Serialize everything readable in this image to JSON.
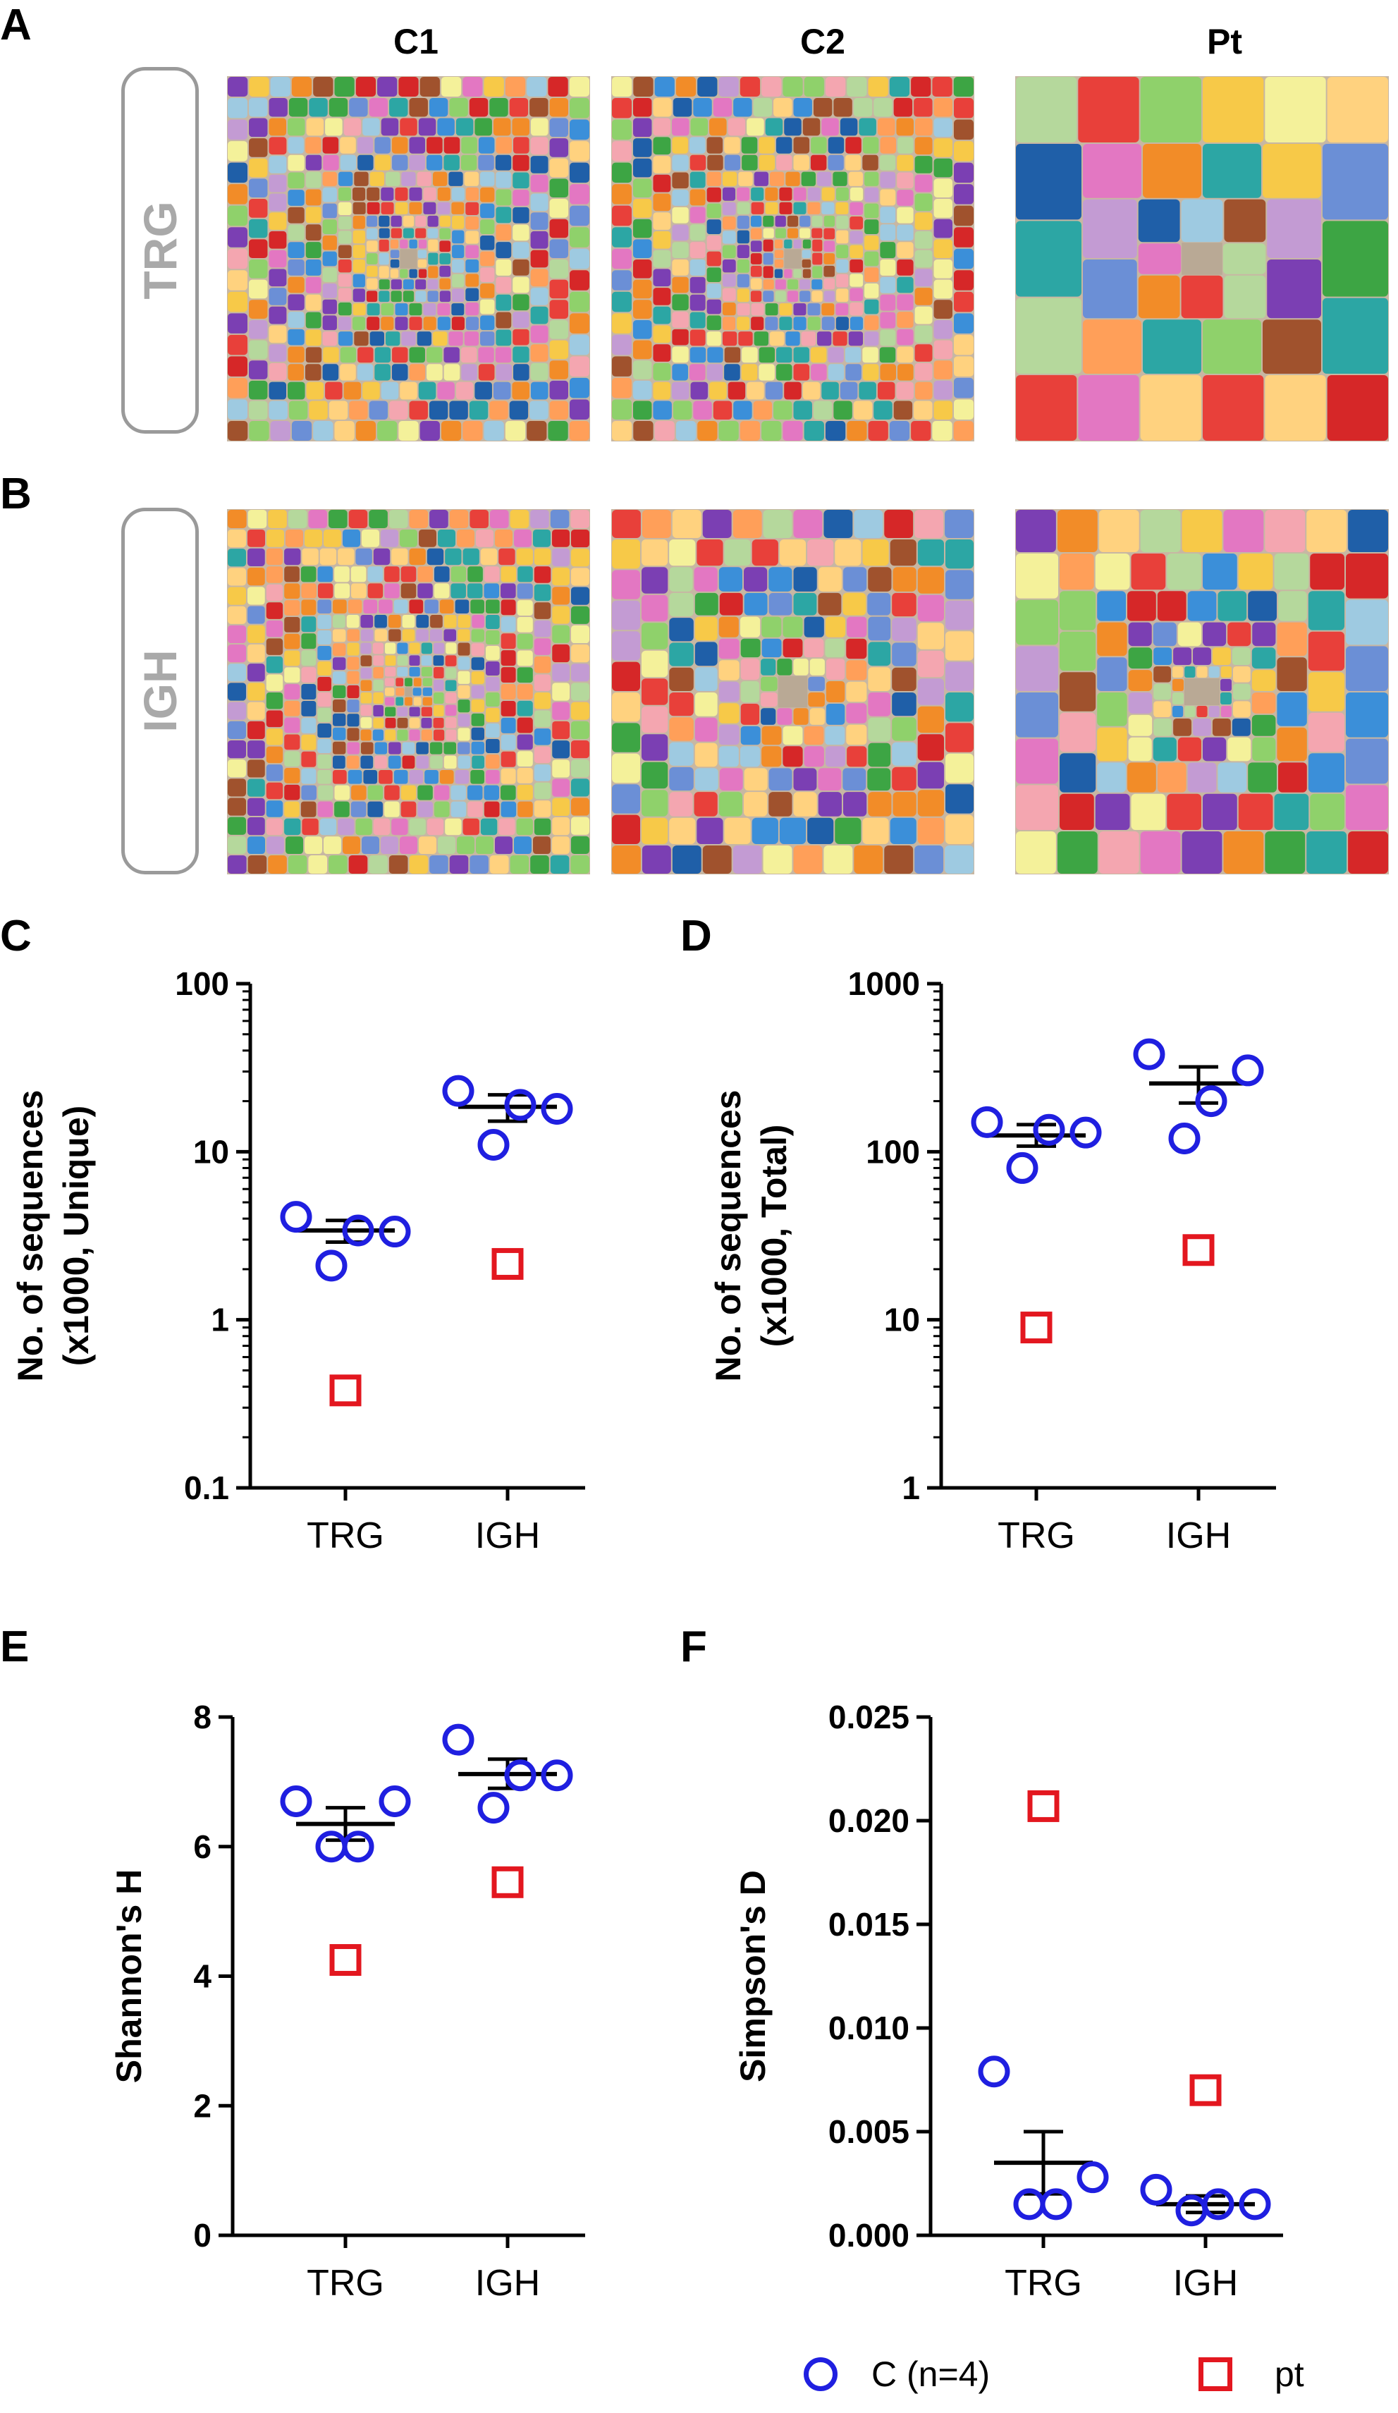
{
  "panels": {
    "a": "A",
    "b": "B",
    "c": "C",
    "d": "D",
    "e": "E",
    "f": "F"
  },
  "treemap_section": {
    "columns": [
      "C1",
      "C2",
      "Pt"
    ],
    "rows": [
      "TRG",
      "IGH"
    ],
    "palette": [
      "#e8403a",
      "#f28c28",
      "#f7c948",
      "#f4f19a",
      "#8fd16b",
      "#3da544",
      "#3b8fd9",
      "#1f5fa8",
      "#9ecae1",
      "#7b3fb3",
      "#c39bd3",
      "#a0522d",
      "#f4a6b0",
      "#d62728",
      "#2ca6a4",
      "#ffd27f",
      "#b5d89c",
      "#6b8fd6",
      "#e377c2",
      "#ff9f59"
    ]
  },
  "colors": {
    "control": "#1f1fe0",
    "patient": "#e3171f",
    "axis": "#000000"
  },
  "legend": {
    "control_label": "C (n=4)",
    "patient_label": "pt"
  },
  "chart_data": [
    {
      "id": "C",
      "type": "scatter",
      "scale": "log",
      "ylabel_line1": "No. of sequences",
      "ylabel_line2": "(x1000, Unique)",
      "categories": [
        "TRG",
        "IGH"
      ],
      "yticks": [
        0.1,
        1,
        10,
        100
      ],
      "ytick_labels": [
        "0.1",
        "1",
        "10",
        "100"
      ],
      "ylim": [
        0.1,
        100
      ],
      "series": [
        {
          "name": "C (n=4)",
          "points": [
            [
              0,
              4.1
            ],
            [
              0,
              3.35
            ],
            [
              0,
              3.4
            ],
            [
              0,
              2.1
            ],
            [
              1,
              23
            ],
            [
              1,
              18
            ],
            [
              1,
              19
            ],
            [
              1,
              11
            ]
          ]
        },
        {
          "name": "pt",
          "points": [
            [
              0,
              0.38
            ],
            [
              1,
              2.15
            ]
          ]
        }
      ],
      "mean_sem": [
        {
          "cat": 0,
          "mean": 3.4,
          "lo": 2.9,
          "hi": 3.9
        },
        {
          "cat": 1,
          "mean": 18.5,
          "lo": 15.2,
          "hi": 21.8
        }
      ]
    },
    {
      "id": "D",
      "type": "scatter",
      "scale": "log",
      "ylabel_line1": "No. of sequences",
      "ylabel_line2": "(x1000, Total)",
      "categories": [
        "TRG",
        "IGH"
      ],
      "yticks": [
        1,
        10,
        100,
        1000
      ],
      "ytick_labels": [
        "1",
        "10",
        "100",
        "1000"
      ],
      "ylim": [
        1,
        1000
      ],
      "series": [
        {
          "name": "C (n=4)",
          "points": [
            [
              0,
              150
            ],
            [
              0,
              130
            ],
            [
              0,
              135
            ],
            [
              0,
              80
            ],
            [
              1,
              380
            ],
            [
              1,
              305
            ],
            [
              1,
              200
            ],
            [
              1,
              120
            ]
          ]
        },
        {
          "name": "pt",
          "points": [
            [
              0,
              9
            ],
            [
              1,
              26
            ]
          ]
        }
      ],
      "mean_sem": [
        {
          "cat": 0,
          "mean": 125,
          "lo": 108,
          "hi": 145
        },
        {
          "cat": 1,
          "mean": 255,
          "lo": 195,
          "hi": 320
        }
      ]
    },
    {
      "id": "E",
      "type": "scatter",
      "scale": "linear",
      "ylabel_line1": "Shannon's H",
      "ylabel_line2": "",
      "categories": [
        "TRG",
        "IGH"
      ],
      "yticks": [
        0,
        2,
        4,
        6,
        8
      ],
      "ytick_labels": [
        "0",
        "2",
        "4",
        "6",
        "8"
      ],
      "ylim": [
        0,
        8
      ],
      "series": [
        {
          "name": "C (n=4)",
          "points": [
            [
              0,
              6.7
            ],
            [
              0,
              6.7
            ],
            [
              0,
              6.0
            ],
            [
              0,
              6.0
            ],
            [
              1,
              7.65
            ],
            [
              1,
              7.1
            ],
            [
              1,
              7.1
            ],
            [
              1,
              6.6
            ]
          ]
        },
        {
          "name": "pt",
          "points": [
            [
              0,
              4.25
            ],
            [
              1,
              5.45
            ]
          ]
        }
      ],
      "mean_sem": [
        {
          "cat": 0,
          "mean": 6.35,
          "lo": 6.1,
          "hi": 6.6
        },
        {
          "cat": 1,
          "mean": 7.12,
          "lo": 6.9,
          "hi": 7.35
        }
      ]
    },
    {
      "id": "F",
      "type": "scatter",
      "scale": "linear",
      "ylabel_line1": "Simpson's D",
      "ylabel_line2": "",
      "categories": [
        "TRG",
        "IGH"
      ],
      "yticks": [
        0,
        0.005,
        0.01,
        0.015,
        0.02,
        0.025
      ],
      "ytick_labels": [
        "0.000",
        "0.005",
        "0.010",
        "0.015",
        "0.020",
        "0.025"
      ],
      "ylim": [
        0,
        0.025
      ],
      "series": [
        {
          "name": "C (n=4)",
          "points": [
            [
              0,
              0.0079
            ],
            [
              0,
              0.0028
            ],
            [
              0,
              0.0015
            ],
            [
              0,
              0.0015
            ],
            [
              1,
              0.0022
            ],
            [
              1,
              0.0015
            ],
            [
              1,
              0.0015
            ],
            [
              1,
              0.0012
            ]
          ]
        },
        {
          "name": "pt",
          "points": [
            [
              0,
              0.0207
            ],
            [
              1,
              0.007
            ]
          ]
        }
      ],
      "mean_sem": [
        {
          "cat": 0,
          "mean": 0.0035,
          "lo": 0.002,
          "hi": 0.005
        },
        {
          "cat": 1,
          "mean": 0.0015,
          "lo": 0.0011,
          "hi": 0.0019
        }
      ]
    }
  ]
}
